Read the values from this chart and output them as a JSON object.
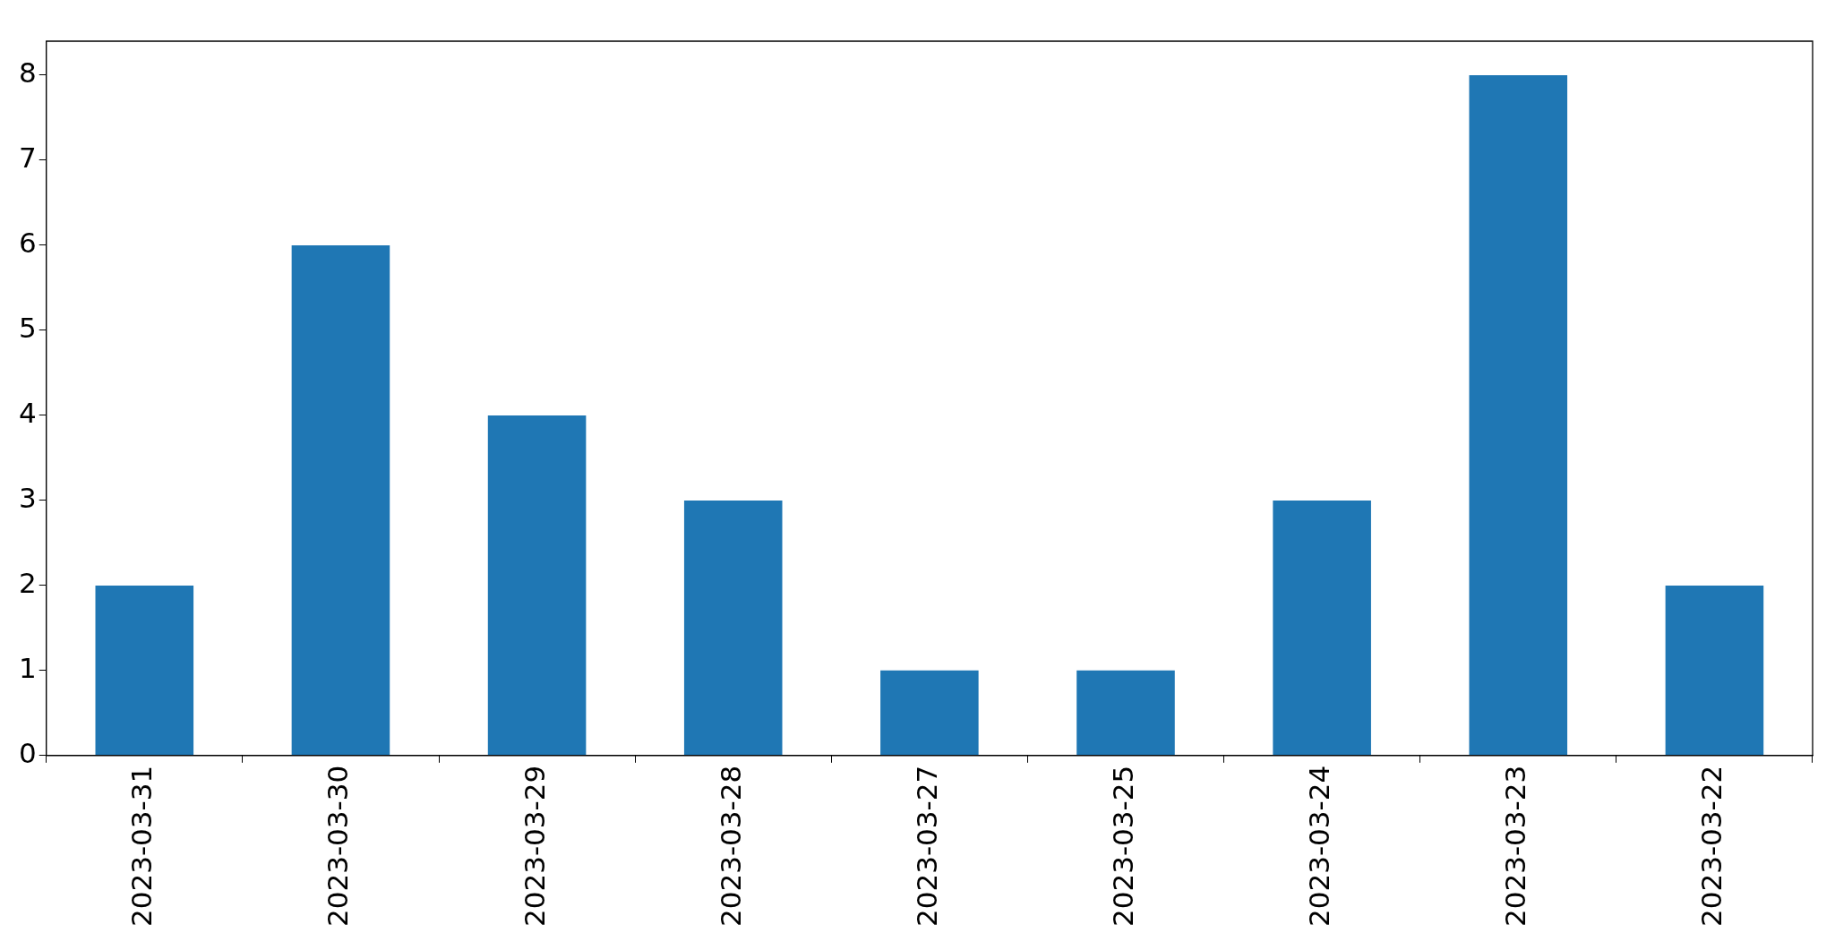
{
  "chart_data": {
    "type": "bar",
    "categories": [
      "2023-03-31",
      "2023-03-30",
      "2023-03-29",
      "2023-03-28",
      "2023-03-27",
      "2023-03-25",
      "2023-03-24",
      "2023-03-23",
      "2023-03-22"
    ],
    "values": [
      2,
      6,
      4,
      3,
      1,
      1,
      3,
      8,
      2
    ],
    "color": "#1f77b4",
    "ylim": [
      0,
      8.4
    ],
    "yticks": [
      0,
      1,
      2,
      3,
      4,
      5,
      6,
      7,
      8
    ],
    "grid": false,
    "legend": false
  }
}
